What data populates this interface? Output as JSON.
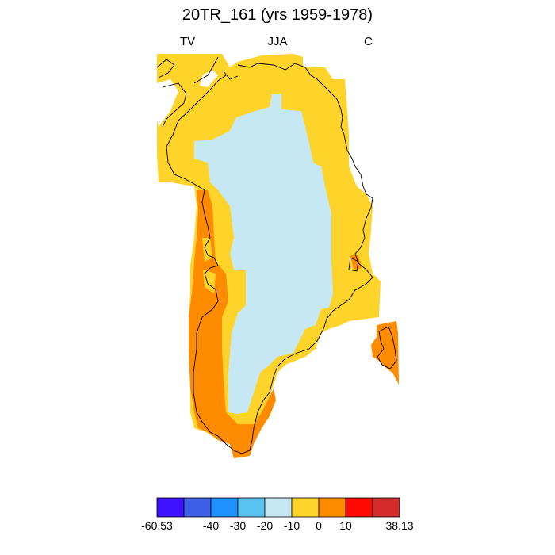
{
  "title": "20TR_161 (yrs 1959-1978)",
  "subtitle_left": "TV",
  "subtitle_center": "JJA",
  "subtitle_right": "C",
  "colors": {
    "c0": "#3f10ff",
    "c1": "#3c5fe6",
    "c2": "#1e90ff",
    "c3": "#5ac4f0",
    "c4": "#c6e8f5",
    "c5": "#ffd42a",
    "c6": "#ff8c00",
    "c7": "#ff0a00",
    "c8": "#d42a2a",
    "coastline": "#000000"
  },
  "colorbar": {
    "colors": [
      "#3f10ff",
      "#3c5fe6",
      "#1e90ff",
      "#5ac4f0",
      "#c6e8f5",
      "#ffd42a",
      "#ff8c00",
      "#ff0a00",
      "#d42a2a"
    ],
    "labels": [
      "-60.53",
      "-40",
      "-30",
      "-20",
      "-10",
      "0",
      "10",
      "38.13"
    ]
  }
}
